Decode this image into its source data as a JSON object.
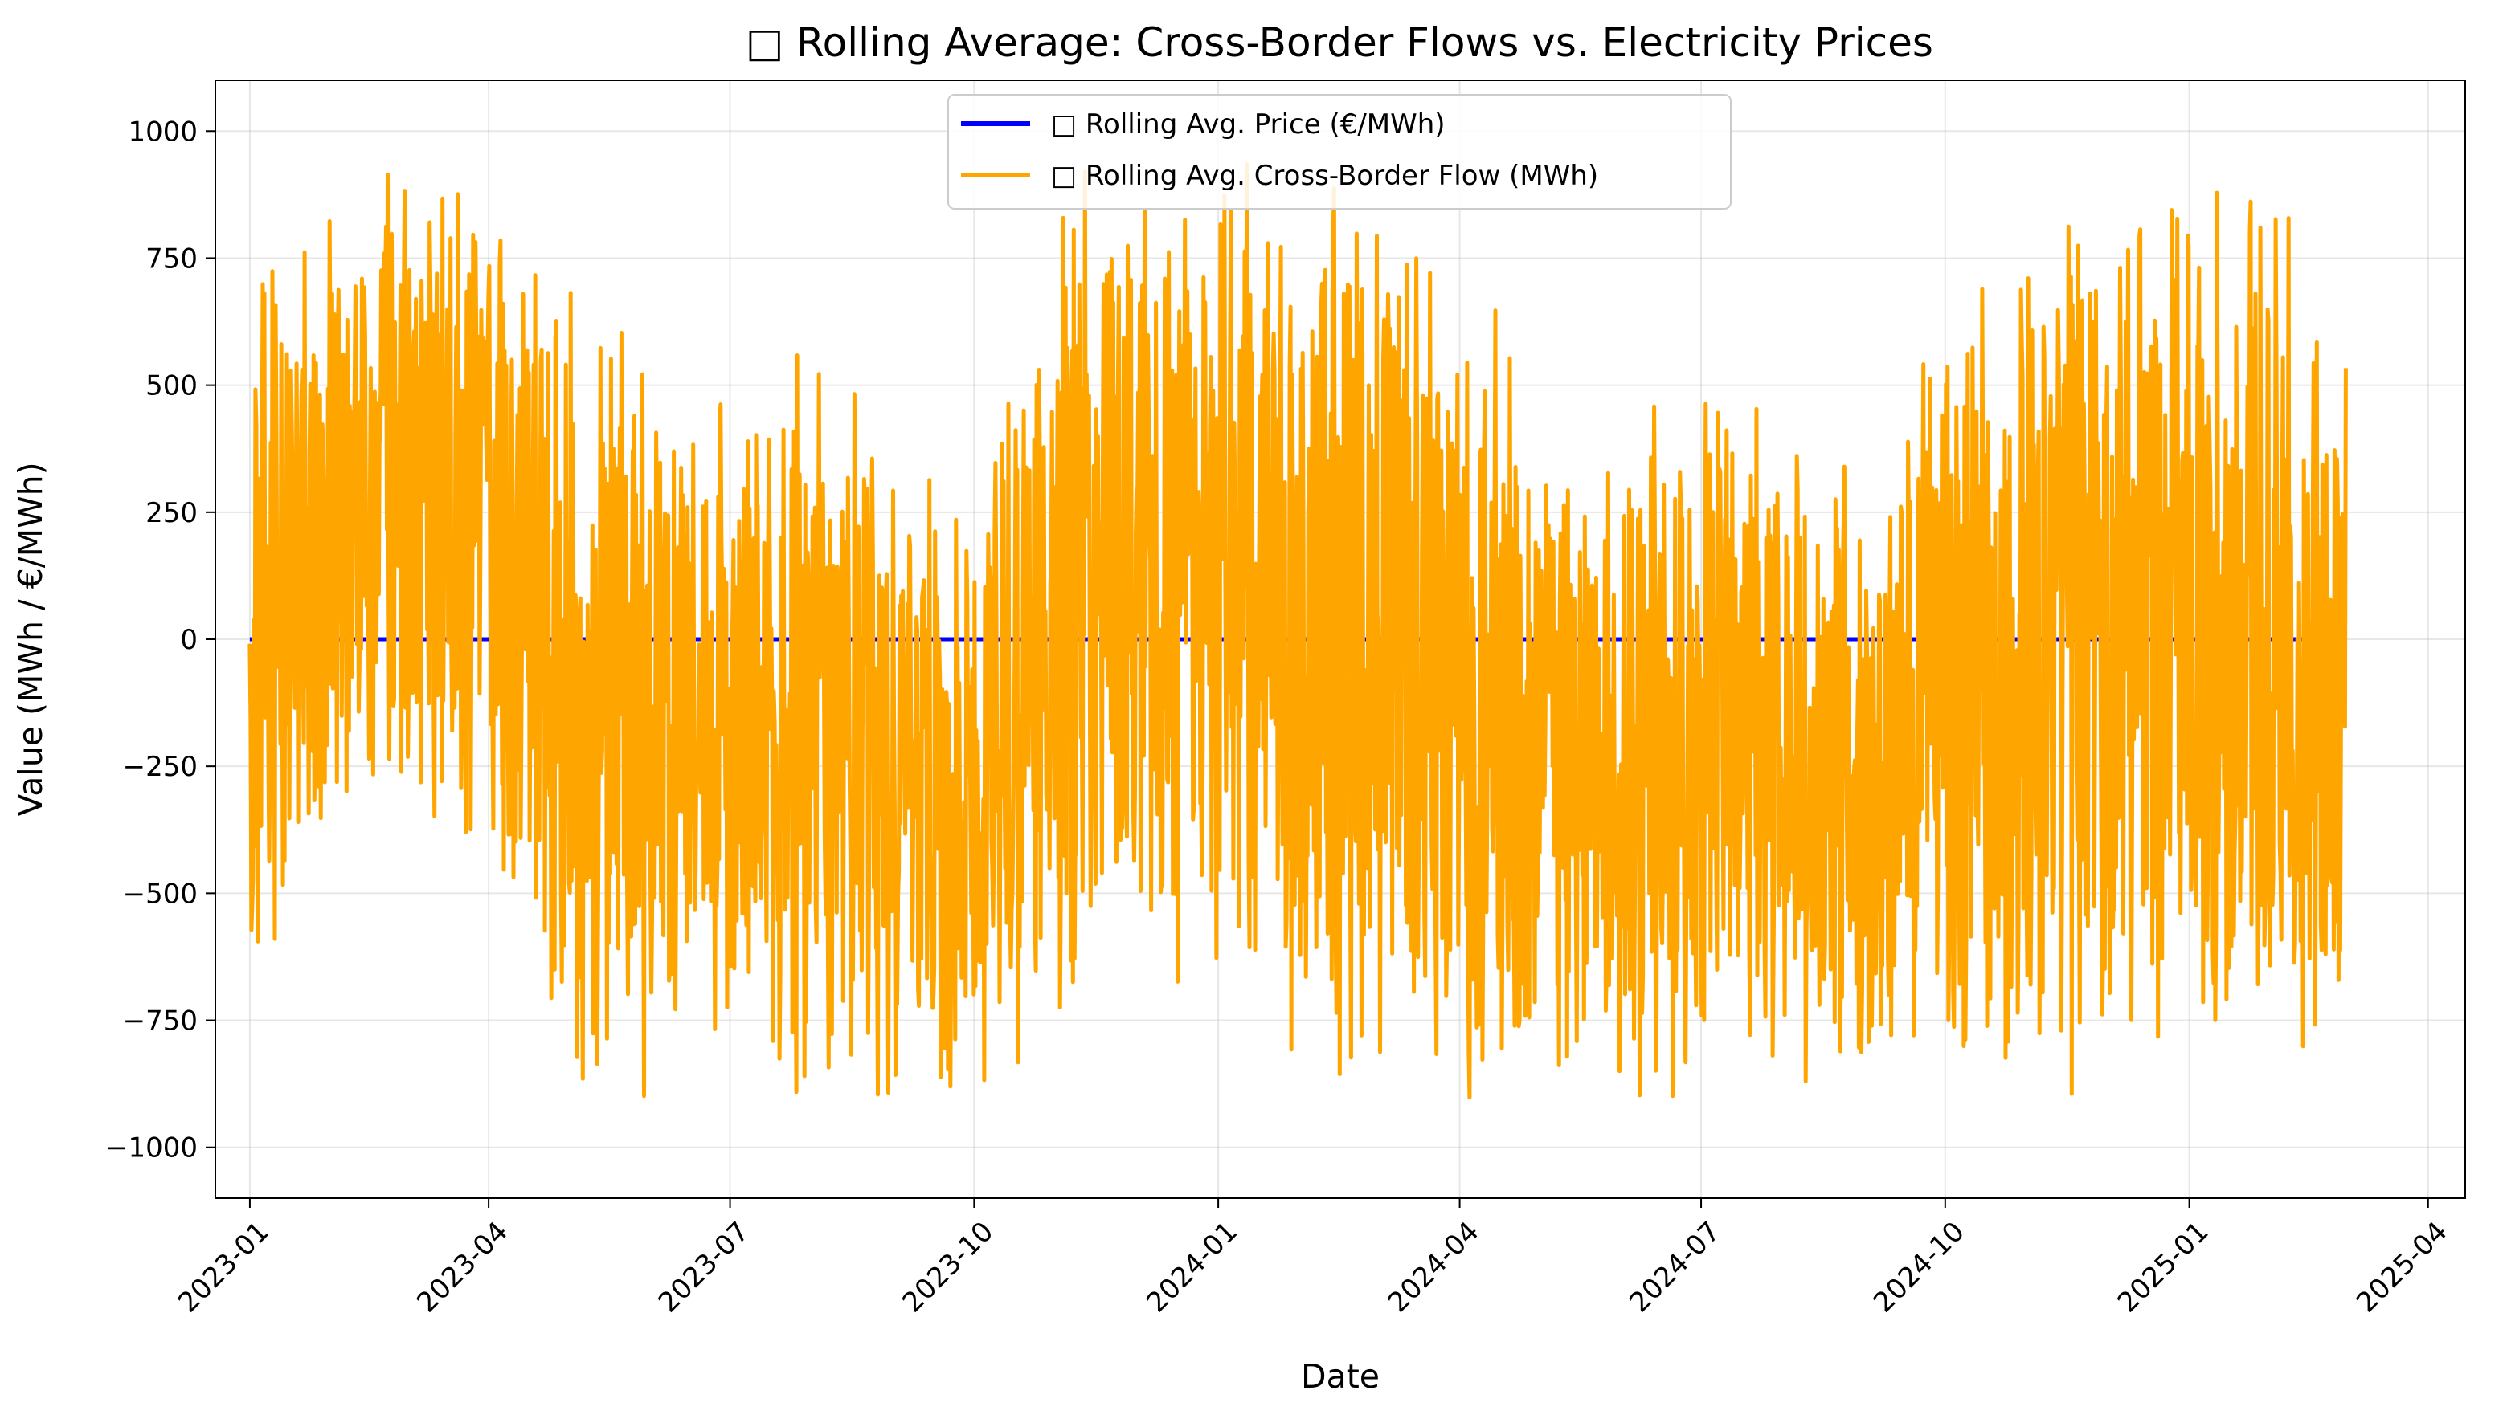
{
  "chart_data": {
    "type": "line",
    "title": "□ Rolling Average: Cross-Border Flows vs. Electricity Prices",
    "xlabel": "Date",
    "ylabel": "Value (MWh / €/MWh)",
    "x_axis_type": "date",
    "xlim": [
      "2022-12-19",
      "2025-04-15"
    ],
    "ylim": [
      -1100,
      1100
    ],
    "x_ticks": [
      "2023-01",
      "2023-04",
      "2023-07",
      "2023-10",
      "2024-01",
      "2024-04",
      "2024-07",
      "2024-10",
      "2025-01",
      "2025-04"
    ],
    "y_ticks": [
      {
        "value": 1000,
        "label": "1000"
      },
      {
        "value": 750,
        "label": "750"
      },
      {
        "value": 500,
        "label": "500"
      },
      {
        "value": 250,
        "label": "250"
      },
      {
        "value": 0,
        "label": "0"
      },
      {
        "value": -250,
        "label": "−250"
      },
      {
        "value": -500,
        "label": "−500"
      },
      {
        "value": -750,
        "label": "−750"
      },
      {
        "value": -1000,
        "label": "−1000"
      }
    ],
    "grid": true,
    "legend_position": "top-center",
    "series": [
      {
        "name": "□ Rolling Avg. Price (€/MWh)",
        "color": "#0000ff",
        "x": [
          "2023-01-01",
          "2025-03-01"
        ],
        "values": [
          0,
          0
        ]
      },
      {
        "name": "□ Rolling Avg. Cross-Border Flow (MWh)",
        "color": "#ffa500",
        "x_start": "2023-01-01",
        "x_end": "2025-03-01",
        "sampling": "hourly, approx 19,000 points; visible envelope shown",
        "values_range": [
          -1000,
          1000
        ],
        "envelope": [
          {
            "date": "2023-01-01",
            "min": -720,
            "max": 800
          },
          {
            "date": "2023-02-01",
            "min": -550,
            "max": 960
          },
          {
            "date": "2023-03-01",
            "min": -360,
            "max": 950
          },
          {
            "date": "2023-04-01",
            "min": -500,
            "max": 930
          },
          {
            "date": "2023-05-01",
            "min": -970,
            "max": 760
          },
          {
            "date": "2023-06-01",
            "min": -980,
            "max": 600
          },
          {
            "date": "2023-07-01",
            "min": -810,
            "max": 460
          },
          {
            "date": "2023-08-01",
            "min": -980,
            "max": 730
          },
          {
            "date": "2023-09-01",
            "min": -990,
            "max": 420
          },
          {
            "date": "2023-10-01",
            "min": -990,
            "max": 370
          },
          {
            "date": "2023-11-01",
            "min": -900,
            "max": 960
          },
          {
            "date": "2023-12-01",
            "min": -700,
            "max": 980
          },
          {
            "date": "2024-01-01",
            "min": -680,
            "max": 1000
          },
          {
            "date": "2024-02-01",
            "min": -940,
            "max": 940
          },
          {
            "date": "2024-03-01",
            "min": -920,
            "max": 950
          },
          {
            "date": "2024-04-01",
            "min": -900,
            "max": 830
          },
          {
            "date": "2024-05-01",
            "min": -960,
            "max": 440
          },
          {
            "date": "2024-06-01",
            "min": -960,
            "max": 460
          },
          {
            "date": "2024-07-01",
            "min": -940,
            "max": 610
          },
          {
            "date": "2024-08-01",
            "min": -880,
            "max": 500
          },
          {
            "date": "2024-09-01",
            "min": -980,
            "max": 340
          },
          {
            "date": "2024-10-01",
            "min": -950,
            "max": 680
          },
          {
            "date": "2024-11-01",
            "min": -1000,
            "max": 850
          },
          {
            "date": "2024-12-01",
            "min": -950,
            "max": 950
          },
          {
            "date": "2025-01-01",
            "min": -860,
            "max": 1000
          },
          {
            "date": "2025-02-01",
            "min": -880,
            "max": 950
          },
          {
            "date": "2025-03-01",
            "min": -920,
            "max": 560
          }
        ]
      }
    ]
  }
}
